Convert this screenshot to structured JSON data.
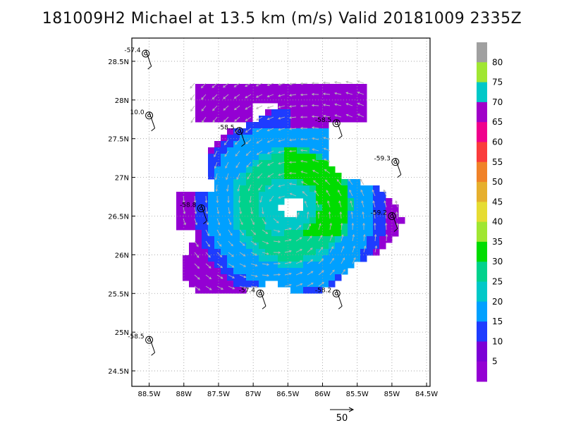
{
  "title": "181009H2 Michael at 13.5 km (m/s) Valid 20181009 2335Z",
  "map": {
    "lat_ticks": [
      "28.5N",
      "28N",
      "27.5N",
      "27N",
      "26.5N",
      "26N",
      "25.5N",
      "25N",
      "24.5N"
    ],
    "lon_ticks": [
      "88.5W",
      "88W",
      "87.5W",
      "87W",
      "86.5W",
      "86W",
      "85.5W",
      "85W",
      "84.5W"
    ],
    "lat_range": [
      24.3,
      28.8
    ],
    "lon_range": [
      88.75,
      84.45
    ],
    "grid": "dotted"
  },
  "colorbar": {
    "labels": [
      "5",
      "10",
      "15",
      "20",
      "25",
      "30",
      "35",
      "40",
      "45",
      "50",
      "55",
      "60",
      "65",
      "70",
      "75",
      "80"
    ],
    "colors": [
      "#9400D3",
      "#7B00D6",
      "#1E3CFF",
      "#00A0FF",
      "#00C8C8",
      "#00D28C",
      "#00DC00",
      "#A0E632",
      "#E6DC32",
      "#E6AF2D",
      "#F08228",
      "#FA3C3C",
      "#F0008C",
      "#A000C8",
      "#00C8C8",
      "#A0E632",
      "#A0A0A0"
    ]
  },
  "stations": [
    {
      "label": "-57.4",
      "lon": -88.55,
      "lat": 28.6
    },
    {
      "label": "10.0",
      "lon": -88.5,
      "lat": 27.8
    },
    {
      "label": "-58.5",
      "lon": -87.2,
      "lat": 27.6
    },
    {
      "label": "-58.5",
      "lon": -85.8,
      "lat": 27.7
    },
    {
      "label": "-59.3",
      "lon": -84.95,
      "lat": 27.2
    },
    {
      "label": "-58.8",
      "lon": -87.75,
      "lat": 26.6
    },
    {
      "label": "-59.2",
      "lon": -85.0,
      "lat": 26.5
    },
    {
      "label": "-57.4",
      "lon": -86.9,
      "lat": 25.5
    },
    {
      "label": "-58.2",
      "lon": -85.8,
      "lat": 25.5
    },
    {
      "label": "-58.5",
      "lon": -88.5,
      "lat": 24.9
    }
  ],
  "reference_vector": {
    "label": "50"
  }
}
